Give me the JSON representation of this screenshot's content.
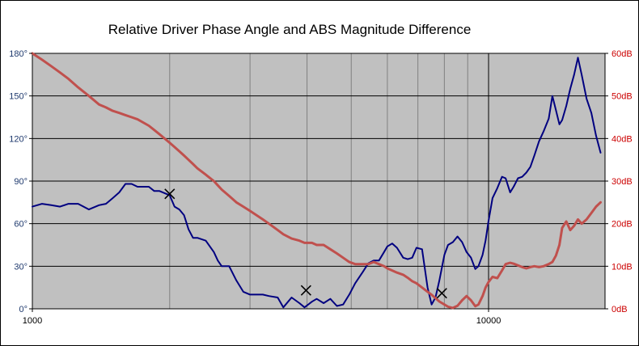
{
  "chart_data": {
    "type": "line",
    "title": "Relative Driver Phase Angle and ABS Magnitude  Difference",
    "x_scale": "log",
    "xlim": [
      1000,
      18000
    ],
    "x_tick_labels": [
      {
        "value": 1000,
        "label": "1000"
      },
      {
        "value": 10000,
        "label": "10000"
      }
    ],
    "y_left": {
      "lim": [
        0,
        180
      ],
      "ticks": [
        {
          "value": 0,
          "label": "0°"
        },
        {
          "value": 30,
          "label": "30°"
        },
        {
          "value": 60,
          "label": "60°"
        },
        {
          "value": 90,
          "label": "90°"
        },
        {
          "value": 120,
          "label": "120°"
        },
        {
          "value": 150,
          "label": "150°"
        },
        {
          "value": 180,
          "label": "180°"
        }
      ],
      "color": "#1f3a6e"
    },
    "y_right": {
      "lim": [
        0,
        60
      ],
      "ticks": [
        {
          "value": 0,
          "label": "0dB"
        },
        {
          "value": 10,
          "label": "10dB"
        },
        {
          "value": 20,
          "label": "20dB"
        },
        {
          "value": 30,
          "label": "30dB"
        },
        {
          "value": 40,
          "label": "40dB"
        },
        {
          "value": 50,
          "label": "50dB"
        },
        {
          "value": 60,
          "label": "60dB"
        }
      ],
      "color": "#cc0000"
    },
    "grid": true,
    "legend": "none",
    "plot_background": "#c0c0c0",
    "series": [
      {
        "axis": "left",
        "color": "#000080",
        "points": [
          [
            1000,
            72
          ],
          [
            1050,
            74
          ],
          [
            1100,
            73
          ],
          [
            1150,
            72
          ],
          [
            1200,
            74
          ],
          [
            1260,
            74
          ],
          [
            1330,
            70
          ],
          [
            1400,
            73
          ],
          [
            1450,
            74
          ],
          [
            1500,
            78
          ],
          [
            1550,
            82
          ],
          [
            1600,
            88
          ],
          [
            1650,
            88
          ],
          [
            1700,
            86
          ],
          [
            1800,
            86
          ],
          [
            1850,
            83
          ],
          [
            1900,
            83
          ],
          [
            2000,
            80
          ],
          [
            2050,
            72
          ],
          [
            2100,
            70
          ],
          [
            2150,
            66
          ],
          [
            2200,
            56
          ],
          [
            2250,
            50
          ],
          [
            2300,
            50
          ],
          [
            2400,
            48
          ],
          [
            2500,
            40
          ],
          [
            2550,
            34
          ],
          [
            2600,
            30
          ],
          [
            2700,
            30
          ],
          [
            2800,
            20
          ],
          [
            2900,
            12
          ],
          [
            3000,
            10
          ],
          [
            3200,
            10
          ],
          [
            3300,
            9
          ],
          [
            3450,
            8
          ],
          [
            3550,
            1
          ],
          [
            3700,
            8
          ],
          [
            3850,
            4
          ],
          [
            3950,
            1
          ],
          [
            4100,
            5
          ],
          [
            4200,
            7
          ],
          [
            4350,
            4
          ],
          [
            4500,
            7
          ],
          [
            4650,
            2
          ],
          [
            4800,
            3
          ],
          [
            4950,
            10
          ],
          [
            5100,
            18
          ],
          [
            5300,
            26
          ],
          [
            5450,
            32
          ],
          [
            5600,
            34
          ],
          [
            5750,
            34
          ],
          [
            5900,
            40
          ],
          [
            6000,
            44
          ],
          [
            6150,
            46
          ],
          [
            6300,
            43
          ],
          [
            6500,
            36
          ],
          [
            6650,
            35
          ],
          [
            6800,
            36
          ],
          [
            6950,
            43
          ],
          [
            7150,
            42
          ],
          [
            7350,
            15
          ],
          [
            7500,
            3
          ],
          [
            7650,
            8
          ],
          [
            7800,
            20
          ],
          [
            8000,
            38
          ],
          [
            8150,
            45
          ],
          [
            8350,
            47
          ],
          [
            8550,
            51
          ],
          [
            8750,
            47
          ],
          [
            8950,
            40
          ],
          [
            9150,
            36
          ],
          [
            9350,
            28
          ],
          [
            9500,
            30
          ],
          [
            9700,
            38
          ],
          [
            9850,
            48
          ],
          [
            10000,
            62
          ],
          [
            10200,
            78
          ],
          [
            10450,
            85
          ],
          [
            10700,
            93
          ],
          [
            10900,
            92
          ],
          [
            11150,
            82
          ],
          [
            11350,
            86
          ],
          [
            11600,
            92
          ],
          [
            11850,
            93
          ],
          [
            12100,
            96
          ],
          [
            12350,
            100
          ],
          [
            12600,
            108
          ],
          [
            12900,
            118
          ],
          [
            13200,
            125
          ],
          [
            13550,
            134
          ],
          [
            13800,
            150
          ],
          [
            14050,
            140
          ],
          [
            14300,
            130
          ],
          [
            14500,
            133
          ],
          [
            14800,
            143
          ],
          [
            15100,
            155
          ],
          [
            15400,
            165
          ],
          [
            15700,
            177
          ],
          [
            16000,
            165
          ],
          [
            16400,
            148
          ],
          [
            16800,
            138
          ],
          [
            17200,
            122
          ],
          [
            17600,
            110
          ]
        ]
      },
      {
        "axis": "right",
        "color": "#c0504d",
        "points": [
          [
            1000,
            60
          ],
          [
            1050,
            58.5
          ],
          [
            1100,
            57
          ],
          [
            1150,
            55.5
          ],
          [
            1200,
            54
          ],
          [
            1260,
            52
          ],
          [
            1330,
            50
          ],
          [
            1400,
            48
          ],
          [
            1450,
            47.3
          ],
          [
            1500,
            46.5
          ],
          [
            1550,
            46
          ],
          [
            1600,
            45.5
          ],
          [
            1650,
            45
          ],
          [
            1700,
            44.5
          ],
          [
            1800,
            43
          ],
          [
            1850,
            42
          ],
          [
            1900,
            41
          ],
          [
            2000,
            39
          ],
          [
            2050,
            38
          ],
          [
            2100,
            37
          ],
          [
            2150,
            36
          ],
          [
            2200,
            35
          ],
          [
            2250,
            34
          ],
          [
            2300,
            33
          ],
          [
            2400,
            31.5
          ],
          [
            2500,
            30
          ],
          [
            2550,
            29
          ],
          [
            2600,
            28
          ],
          [
            2700,
            26.5
          ],
          [
            2800,
            25
          ],
          [
            2900,
            24
          ],
          [
            3000,
            23
          ],
          [
            3200,
            21
          ],
          [
            3300,
            20
          ],
          [
            3450,
            18.5
          ],
          [
            3550,
            17.5
          ],
          [
            3700,
            16.5
          ],
          [
            3850,
            16
          ],
          [
            3950,
            15.5
          ],
          [
            4100,
            15.5
          ],
          [
            4200,
            15
          ],
          [
            4350,
            15
          ],
          [
            4500,
            14
          ],
          [
            4650,
            13
          ],
          [
            4800,
            12
          ],
          [
            4950,
            11
          ],
          [
            5100,
            10.5
          ],
          [
            5300,
            10.5
          ],
          [
            5450,
            10.5
          ],
          [
            5600,
            11
          ],
          [
            5750,
            10.5
          ],
          [
            5900,
            10
          ],
          [
            6000,
            9.5
          ],
          [
            6150,
            9
          ],
          [
            6300,
            8.5
          ],
          [
            6500,
            8
          ],
          [
            6650,
            7.3
          ],
          [
            6800,
            6.5
          ],
          [
            6950,
            6
          ],
          [
            7150,
            5
          ],
          [
            7350,
            4
          ],
          [
            7500,
            3.3
          ],
          [
            7650,
            2.5
          ],
          [
            7800,
            1.7
          ],
          [
            8000,
            1
          ],
          [
            8150,
            0.5
          ],
          [
            8350,
            0.2
          ],
          [
            8550,
            0.7
          ],
          [
            8750,
            2
          ],
          [
            8950,
            3
          ],
          [
            9150,
            2
          ],
          [
            9350,
            0.6
          ],
          [
            9500,
            1
          ],
          [
            9700,
            3
          ],
          [
            9850,
            5
          ],
          [
            10000,
            6.3
          ],
          [
            10200,
            7.5
          ],
          [
            10450,
            7.2
          ],
          [
            10700,
            9
          ],
          [
            10900,
            10.5
          ],
          [
            11150,
            10.8
          ],
          [
            11350,
            10.6
          ],
          [
            11600,
            10.2
          ],
          [
            11850,
            9.8
          ],
          [
            12100,
            9.5
          ],
          [
            12350,
            9.8
          ],
          [
            12600,
            10
          ],
          [
            12900,
            9.8
          ],
          [
            13200,
            10
          ],
          [
            13550,
            10.5
          ],
          [
            13800,
            11
          ],
          [
            14050,
            12.5
          ],
          [
            14300,
            15
          ],
          [
            14500,
            19
          ],
          [
            14800,
            20.5
          ],
          [
            15100,
            18.5
          ],
          [
            15400,
            19.5
          ],
          [
            15700,
            21
          ],
          [
            16000,
            20
          ],
          [
            16400,
            21
          ],
          [
            16800,
            22.5
          ],
          [
            17200,
            24
          ],
          [
            17600,
            25
          ]
        ]
      }
    ],
    "markers": [
      {
        "x": 2000,
        "y": 81,
        "symbol": "x"
      },
      {
        "x": 3980,
        "y": 13,
        "symbol": "x"
      },
      {
        "x": 7900,
        "y": 11,
        "symbol": "x"
      }
    ]
  }
}
